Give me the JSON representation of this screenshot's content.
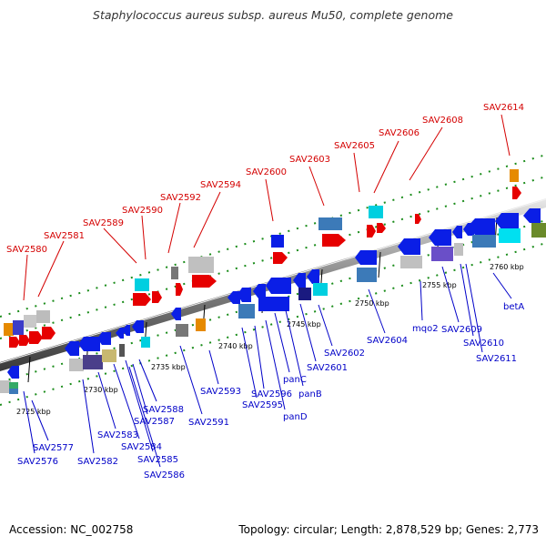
{
  "title": "Staphylococcus aureus subsp. aureus Mu50, complete genome",
  "footer": {
    "accession": "Accession: NC_002758",
    "summary": "Topology: circular; Length: 2,878,529 bp; Genes: 2,773"
  },
  "scale_labels": [
    "2725 kbp",
    "2730 kbp",
    "2735 kbp",
    "2740 kbp",
    "2745 kbp",
    "2750 kbp",
    "2755 kbp",
    "2760 kbp"
  ],
  "top_labels": [
    "SAV2580",
    "SAV2581",
    "SAV2589",
    "SAV2590",
    "SAV2592",
    "SAV2594",
    "SAV2600",
    "SAV2603",
    "SAV2605",
    "SAV2606",
    "SAV2608",
    "SAV2614"
  ],
  "bottom_labels": [
    "SAV2577",
    "SAV2576",
    "SAV2582",
    "SAV2583",
    "SAV2584",
    "SAV2585",
    "SAV2586",
    "SAV2587",
    "SAV2588",
    "SAV2591",
    "SAV2593",
    "SAV2595",
    "SAV2596",
    "panD",
    "panC",
    "panB",
    "SAV2601",
    "SAV2602",
    "SAV2604",
    "mqo2",
    "SAV2609",
    "SAV2610",
    "SAV2611",
    "betA"
  ],
  "colors": {
    "forward_strand": "#e60000",
    "reverse_strand": "#0a1ee6",
    "top_label": "#d40000",
    "bottom_label": "#0000c8",
    "backbone": "#666666",
    "tick": "#1a8c1a"
  }
}
